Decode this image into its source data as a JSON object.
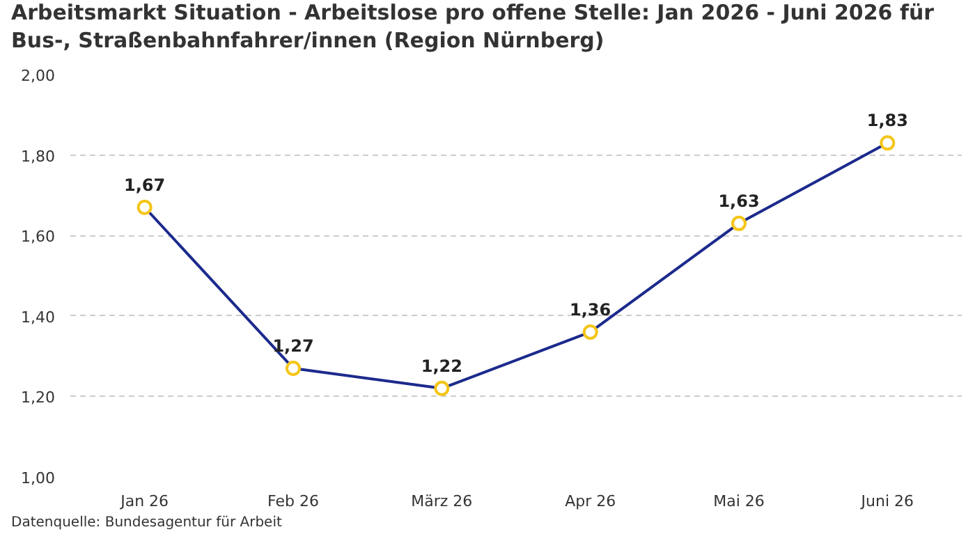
{
  "chart_data": {
    "type": "line",
    "title": "Arbeitsmarkt Situation - Arbeitslose pro offene Stelle: Jan 2026 - Juni 2026 für Bus-, Straßenbahnfahrer/innen (Region Nürnberg)",
    "categories": [
      "Jan 26",
      "Feb 26",
      "März 26",
      "Apr 26",
      "Mai 26",
      "Juni 26"
    ],
    "series": [
      {
        "color": "#1b2a8c",
        "values": [
          1.67,
          1.27,
          1.22,
          1.36,
          1.63,
          1.83
        ]
      }
    ],
    "value_labels": [
      "1,67",
      "1,27",
      "1,22",
      "1,36",
      "1,63",
      "1,83"
    ],
    "ylim": [
      1,
      2
    ],
    "yticks": [
      {
        "value": 1,
        "label": "1,00"
      },
      {
        "value": 1.2,
        "label": "1,20"
      },
      {
        "value": 1.4,
        "label": "1,40"
      },
      {
        "value": 1.6,
        "label": "1,60"
      },
      {
        "value": 1.8,
        "label": "1,80"
      },
      {
        "value": 2,
        "label": "2,00"
      }
    ],
    "grid": "y",
    "marker": "circle",
    "line_style": "solid",
    "annotations": [
      "Datenquelle: Bundesagentur für Arbeit"
    ]
  }
}
